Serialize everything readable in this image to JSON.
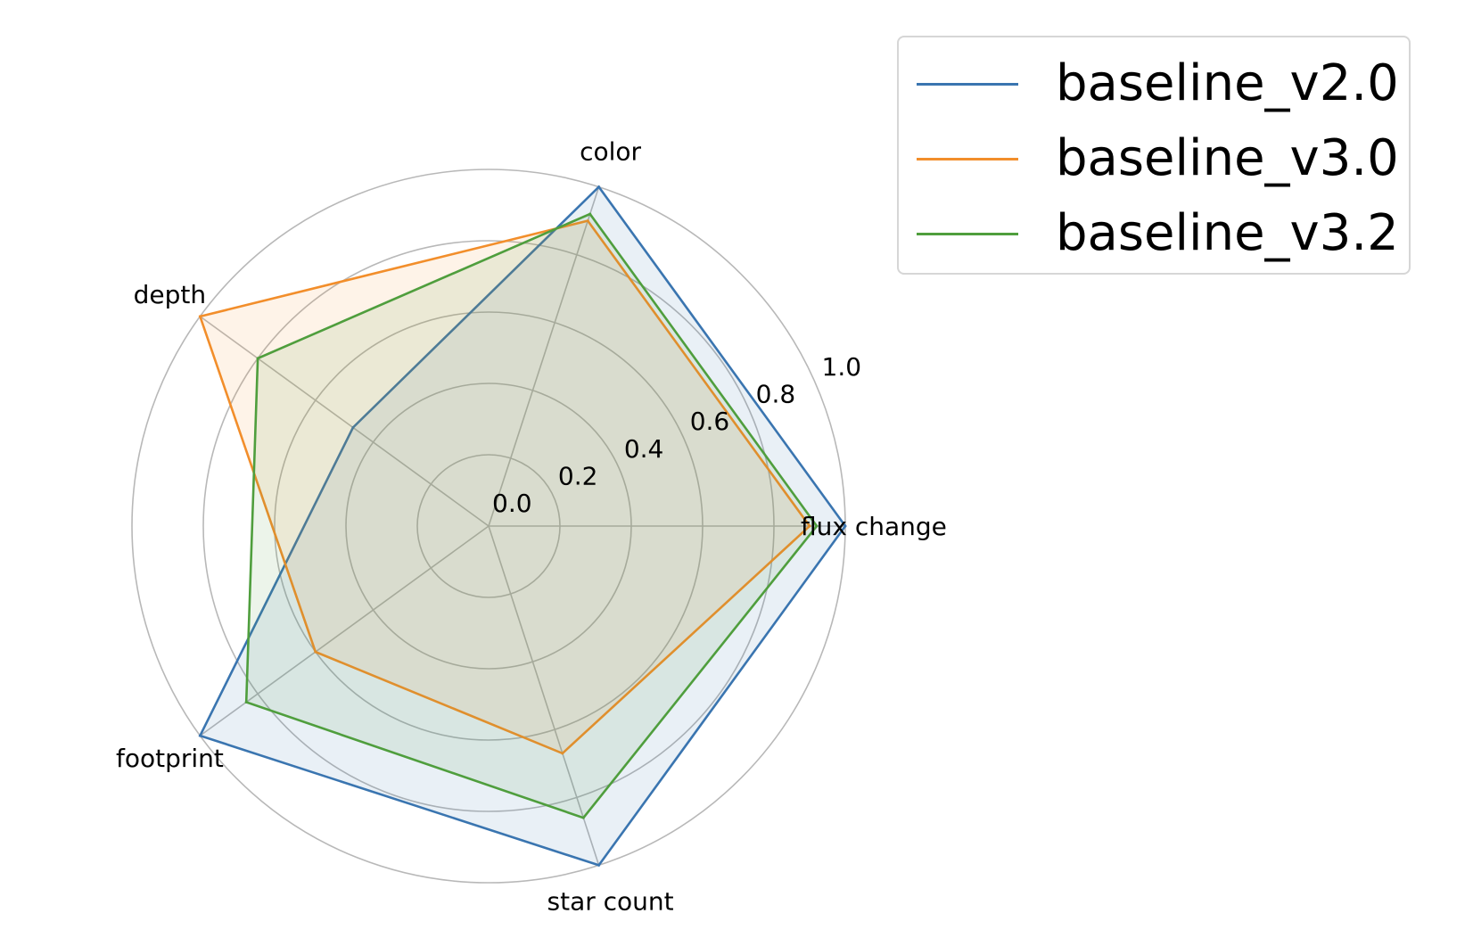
{
  "chart_data": {
    "type": "radar",
    "axes": [
      "flux change",
      "color",
      "depth",
      "footprint",
      "star count"
    ],
    "rlim": [
      0,
      1.0
    ],
    "r_ticks": [
      "0.0",
      "0.2",
      "0.4",
      "0.6",
      "0.8",
      "1.0"
    ],
    "grid": true,
    "legend_position": "top-right",
    "series": [
      {
        "name": "baseline_v2.0",
        "color": "#3a75b0",
        "values": [
          1.0,
          1.0,
          0.47,
          1.0,
          1.0
        ]
      },
      {
        "name": "baseline_v3.0",
        "color": "#f28e2b",
        "values": [
          0.9,
          0.9,
          1.0,
          0.6,
          0.67
        ]
      },
      {
        "name": "baseline_v3.2",
        "color": "#4f9e3d",
        "values": [
          0.92,
          0.92,
          0.8,
          0.84,
          0.86
        ]
      }
    ]
  }
}
